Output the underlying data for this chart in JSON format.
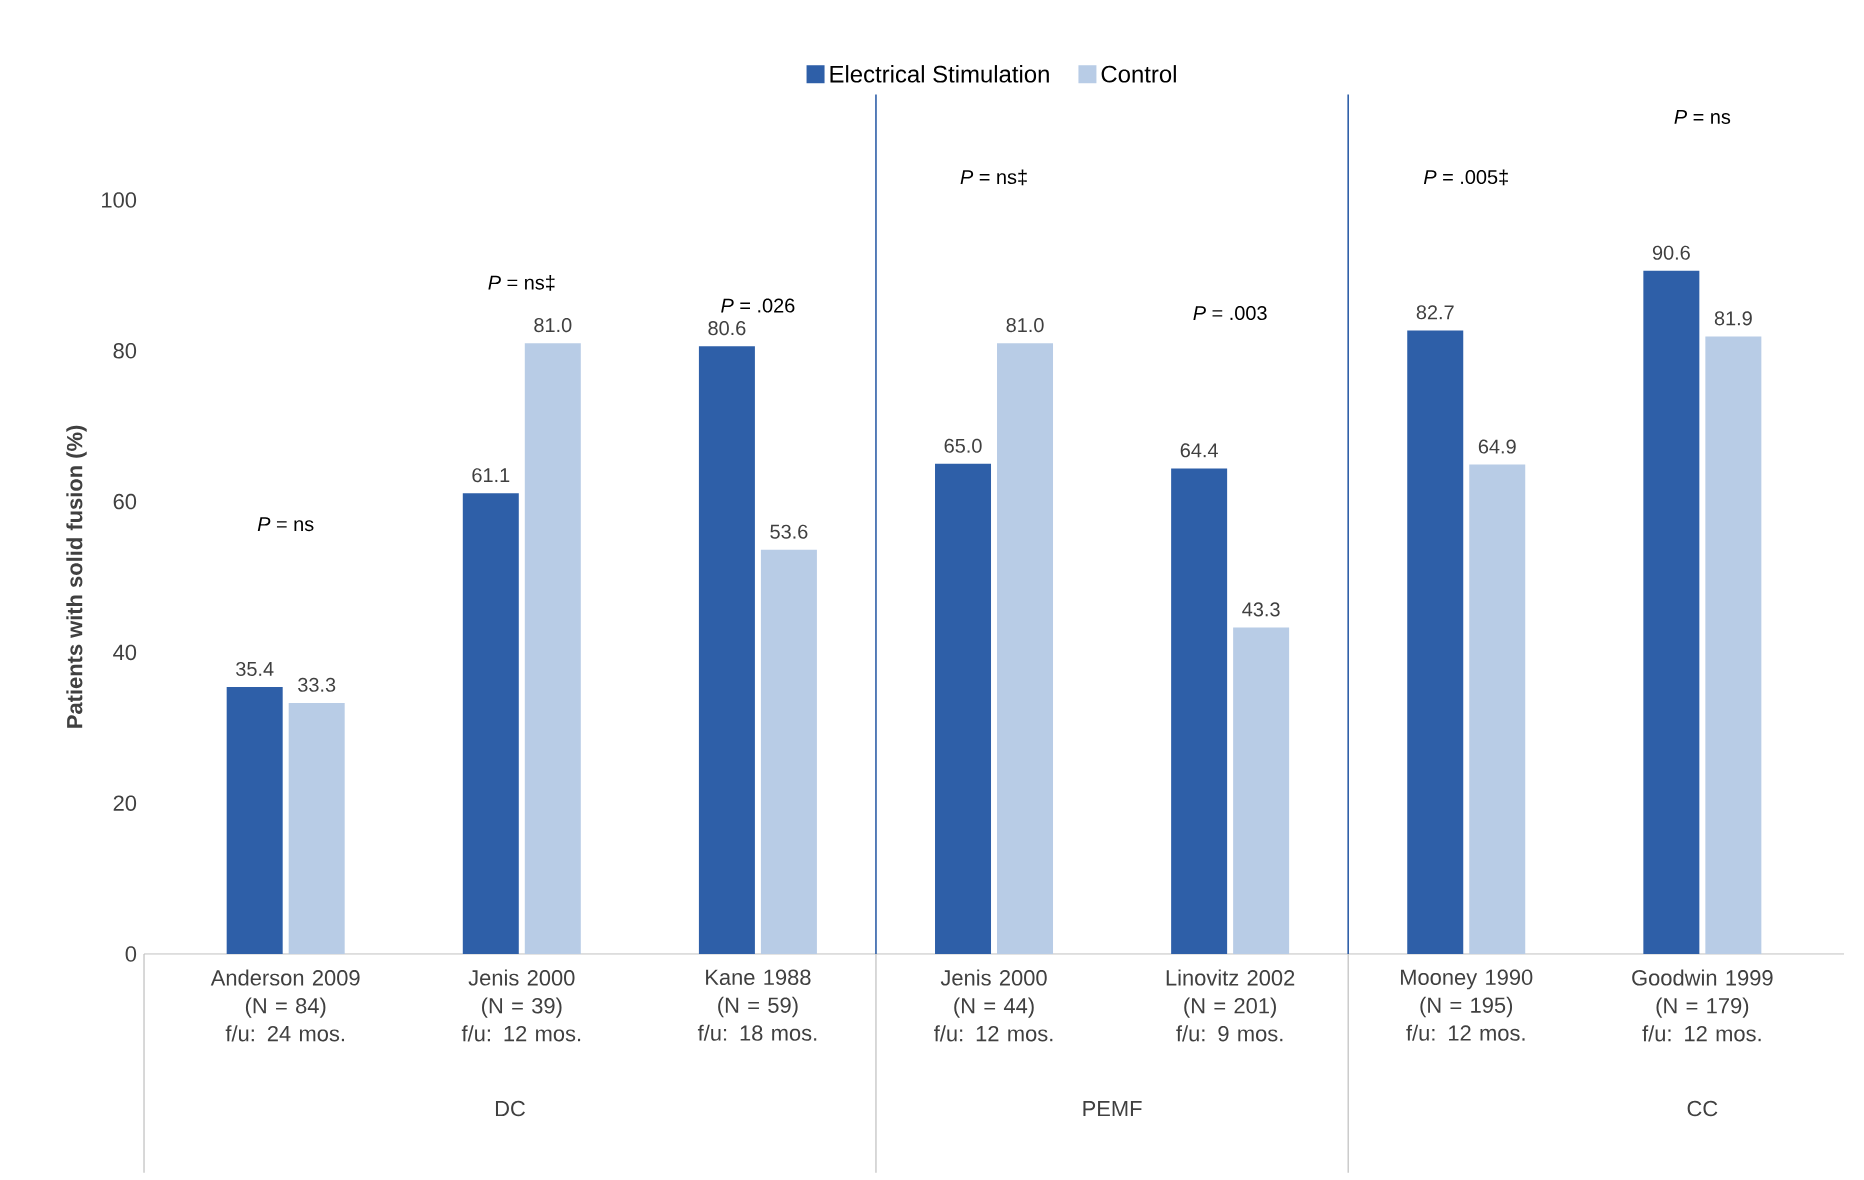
{
  "chart_data": {
    "type": "bar",
    "ylabel": "Patients with solid fusion (%)",
    "categories": [
      "Anderson 2009\n(N = 84)\nf/u: 24 mos.",
      "Jenis 2000\n(N = 39)\nf/u: 12 mos.",
      "Kane 1988\n(N = 59)\nf/u: 18 mos.",
      "Jenis 2000\n(N = 44)\nf/u: 12 mos.",
      "Linovitz 2002\n(N = 201)\nf/u: 9 mos.",
      "Mooney 1990\n(N = 195)\nf/u: 12 mos.",
      "Goodwin 1999\n(N = 179)\nf/u: 12 mos."
    ],
    "series": [
      {
        "name": "Electrical Stimulation",
        "color": "#2e5fa8",
        "values": [
          35.4,
          61.1,
          80.6,
          65.0,
          64.4,
          82.7,
          90.6
        ],
        "value_labels": [
          "35.4",
          "61.1",
          "80.6",
          "65.0",
          "64.4",
          "82.7",
          "90.6"
        ]
      },
      {
        "name": "Control",
        "color": "#b8cce6",
        "values": [
          33.3,
          81.0,
          53.6,
          81.0,
          43.3,
          64.9,
          81.9
        ],
        "value_labels": [
          "33.3",
          "81.0",
          "53.6",
          "81.0",
          "43.3",
          "64.9",
          "81.9"
        ]
      }
    ],
    "ylim": [
      0,
      100
    ],
    "yticks": [
      0,
      20,
      40,
      60,
      80,
      100
    ],
    "legend": "top",
    "grid": false,
    "annotations": [
      "*P* = ns",
      "*P* = ns‡",
      "*P* = .026",
      "*P* = ns‡",
      "*P* = .003",
      "*P* = .005‡",
      "*P* = ns",
      "DC",
      "PEMF",
      "CC"
    ]
  }
}
